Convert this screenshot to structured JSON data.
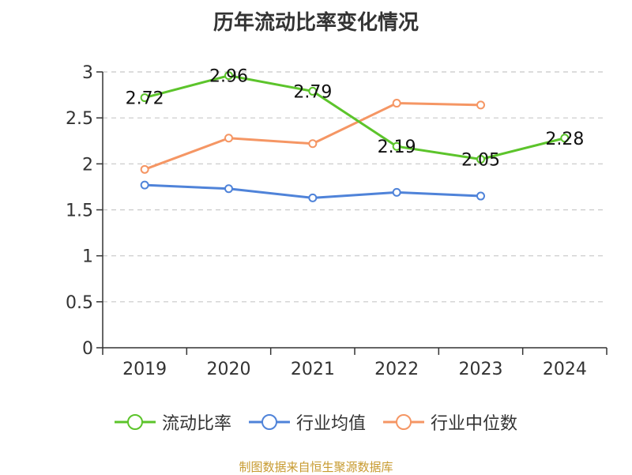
{
  "chart_data": {
    "type": "line",
    "title": "历年流动比率变化情况",
    "categories": [
      "2019",
      "2020",
      "2021",
      "2022",
      "2023",
      "2024"
    ],
    "ylim": [
      0,
      3
    ],
    "yticks": [
      "0",
      "0.5",
      "1",
      "1.5",
      "2",
      "2.5",
      "3"
    ],
    "grid": true,
    "legend_position": "bottom",
    "series": [
      {
        "name": "流动比率",
        "color": "#5cc42b",
        "values": [
          2.72,
          2.96,
          2.79,
          2.19,
          2.05,
          2.28
        ],
        "labels": [
          "2.72",
          "2.96",
          "2.79",
          "2.19",
          "2.05",
          "2.28"
        ]
      },
      {
        "name": "行业均值",
        "color": "#4f83d9",
        "values": [
          1.77,
          1.73,
          1.63,
          1.69,
          1.65,
          null
        ]
      },
      {
        "name": "行业中位数",
        "color": "#f59664",
        "values": [
          1.94,
          2.28,
          2.22,
          2.66,
          2.64,
          null
        ]
      }
    ]
  },
  "source_note": "制图数据来自恒生聚源数据库"
}
